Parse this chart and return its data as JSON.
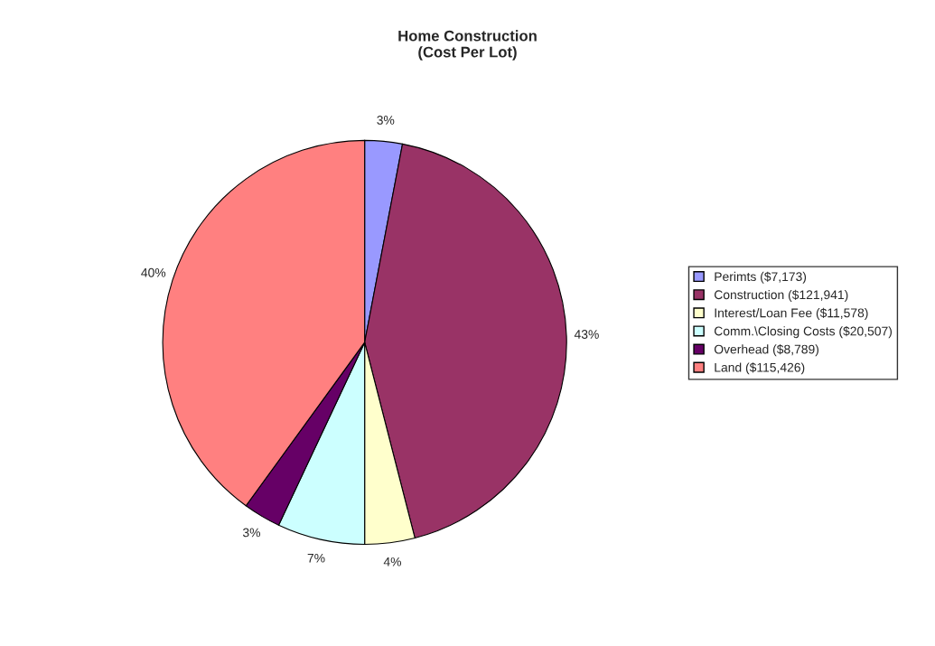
{
  "chart_data": {
    "type": "pie",
    "title": "Home Construction\n(Cost Per Lot)",
    "categories": [
      "Perimts ($7,173)",
      "Construction ($121,941)",
      "Interest/Loan Fee ($11,578)",
      "Comm.\\Closing Costs ($20,507)",
      "Overhead ($8,789)",
      "Land ($115,426)"
    ],
    "values": [
      3,
      43,
      4,
      7,
      3,
      40
    ],
    "value_labels": [
      "3%",
      "43%",
      "4%",
      "7%",
      "3%",
      "40%"
    ],
    "colors": [
      "#9999ff",
      "#993366",
      "#ffffcc",
      "#ccffff",
      "#660066",
      "#ff8080"
    ],
    "legend": "right"
  }
}
